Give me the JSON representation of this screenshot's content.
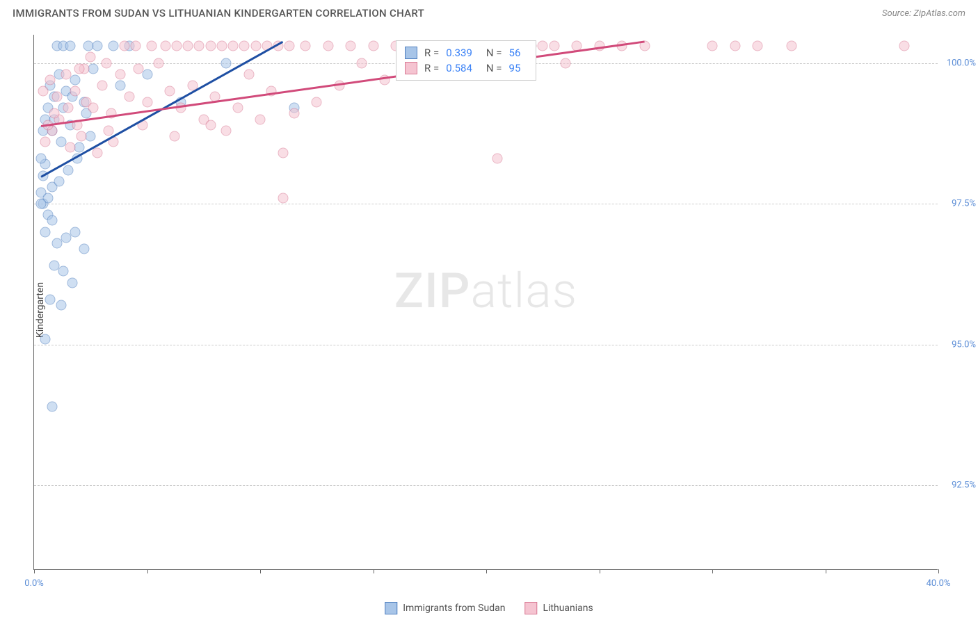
{
  "title": "IMMIGRANTS FROM SUDAN VS LITHUANIAN KINDERGARTEN CORRELATION CHART",
  "source": "Source: ZipAtlas.com",
  "yaxis_label": "Kindergarten",
  "watermark": {
    "part1": "ZIP",
    "part2": "atlas"
  },
  "chart": {
    "type": "scatter",
    "xlim": [
      0,
      40
    ],
    "ylim": [
      91,
      100.5
    ],
    "background_color": "#ffffff",
    "grid_color": "#cccccc",
    "axis_color": "#666666",
    "xticks": [
      0,
      5,
      10,
      15,
      20,
      25,
      30,
      35,
      40
    ],
    "xtick_labels": {
      "0": "0.0%",
      "40": "40.0%"
    },
    "yticks": [
      92.5,
      95.0,
      97.5,
      100.0
    ],
    "ytick_labels": [
      "92.5%",
      "95.0%",
      "97.5%",
      "100.0%"
    ],
    "point_radius": 7.5,
    "point_opacity": 0.55,
    "label_color": "#5b8dd6",
    "label_fontsize": 13
  },
  "series": [
    {
      "name": "Immigrants from Sudan",
      "fill_color": "#a8c5e8",
      "stroke_color": "#4f7fbf",
      "trend_color": "#1e4fa3",
      "R": "0.339",
      "N": "56",
      "trend": {
        "x1": 0.3,
        "y1": 98.0,
        "x2": 11.0,
        "y2": 100.4
      },
      "points": [
        [
          0.3,
          97.7
        ],
        [
          0.4,
          98.0
        ],
        [
          0.5,
          98.2
        ],
        [
          0.4,
          97.5
        ],
        [
          0.6,
          97.6
        ],
        [
          0.3,
          98.3
        ],
        [
          1.0,
          100.3
        ],
        [
          1.3,
          100.3
        ],
        [
          1.6,
          100.3
        ],
        [
          2.4,
          100.3
        ],
        [
          2.8,
          100.3
        ],
        [
          3.5,
          100.3
        ],
        [
          4.2,
          100.3
        ],
        [
          1.1,
          99.8
        ],
        [
          0.7,
          99.6
        ],
        [
          0.9,
          99.4
        ],
        [
          1.4,
          99.5
        ],
        [
          1.8,
          99.7
        ],
        [
          2.2,
          99.3
        ],
        [
          2.6,
          99.9
        ],
        [
          0.5,
          99.0
        ],
        [
          0.8,
          98.8
        ],
        [
          1.2,
          98.6
        ],
        [
          1.6,
          98.9
        ],
        [
          2.0,
          98.5
        ],
        [
          2.5,
          98.7
        ],
        [
          0.4,
          98.8
        ],
        [
          0.6,
          99.2
        ],
        [
          0.9,
          99.0
        ],
        [
          1.3,
          99.2
        ],
        [
          1.7,
          99.4
        ],
        [
          0.8,
          97.8
        ],
        [
          1.1,
          97.9
        ],
        [
          1.5,
          98.1
        ],
        [
          1.9,
          98.3
        ],
        [
          2.3,
          99.1
        ],
        [
          0.6,
          97.3
        ],
        [
          0.3,
          97.5
        ],
        [
          0.5,
          97.0
        ],
        [
          0.8,
          97.2
        ],
        [
          1.0,
          96.8
        ],
        [
          1.4,
          96.9
        ],
        [
          1.8,
          97.0
        ],
        [
          2.2,
          96.7
        ],
        [
          0.9,
          96.4
        ],
        [
          1.3,
          96.3
        ],
        [
          1.7,
          96.1
        ],
        [
          0.7,
          95.8
        ],
        [
          1.2,
          95.7
        ],
        [
          0.5,
          95.1
        ],
        [
          0.8,
          93.9
        ],
        [
          3.8,
          99.6
        ],
        [
          5.0,
          99.8
        ],
        [
          6.5,
          99.3
        ],
        [
          8.5,
          100.0
        ],
        [
          11.5,
          99.2
        ]
      ]
    },
    {
      "name": "Lithuanians",
      "fill_color": "#f5c4d1",
      "stroke_color": "#d97a95",
      "trend_color": "#d14a7a",
      "R": "0.584",
      "N": "95",
      "trend": {
        "x1": 0.3,
        "y1": 98.9,
        "x2": 27.0,
        "y2": 100.4
      },
      "points": [
        [
          0.5,
          98.6
        ],
        [
          0.8,
          98.8
        ],
        [
          1.1,
          99.0
        ],
        [
          1.5,
          99.2
        ],
        [
          1.9,
          98.9
        ],
        [
          2.3,
          99.3
        ],
        [
          0.4,
          99.5
        ],
        [
          0.7,
          99.7
        ],
        [
          1.0,
          99.4
        ],
        [
          1.4,
          99.8
        ],
        [
          1.8,
          99.5
        ],
        [
          2.2,
          99.9
        ],
        [
          2.6,
          99.2
        ],
        [
          3.0,
          99.6
        ],
        [
          3.4,
          99.1
        ],
        [
          3.8,
          99.8
        ],
        [
          4.2,
          99.4
        ],
        [
          4.6,
          99.9
        ],
        [
          5.0,
          99.3
        ],
        [
          5.5,
          100.0
        ],
        [
          6.0,
          99.5
        ],
        [
          6.5,
          99.2
        ],
        [
          7.0,
          99.6
        ],
        [
          7.5,
          99.0
        ],
        [
          8.0,
          99.4
        ],
        [
          8.5,
          98.8
        ],
        [
          9.0,
          99.2
        ],
        [
          9.5,
          99.8
        ],
        [
          10.0,
          99.0
        ],
        [
          10.5,
          99.5
        ],
        [
          11.0,
          98.4
        ],
        [
          11.5,
          99.1
        ],
        [
          12.0,
          100.3
        ],
        [
          12.5,
          99.3
        ],
        [
          13.0,
          100.3
        ],
        [
          13.5,
          99.6
        ],
        [
          14.0,
          100.3
        ],
        [
          14.5,
          100.0
        ],
        [
          15.0,
          100.3
        ],
        [
          15.5,
          99.7
        ],
        [
          16.0,
          100.3
        ],
        [
          16.5,
          100.0
        ],
        [
          17.0,
          100.3
        ],
        [
          17.5,
          99.8
        ],
        [
          18.0,
          100.3
        ],
        [
          18.5,
          100.0
        ],
        [
          19.0,
          100.3
        ],
        [
          19.5,
          100.3
        ],
        [
          20.0,
          100.0
        ],
        [
          20.5,
          100.3
        ],
        [
          21.0,
          100.3
        ],
        [
          21.5,
          100.0
        ],
        [
          22.0,
          100.3
        ],
        [
          22.5,
          100.3
        ],
        [
          23.0,
          100.3
        ],
        [
          23.5,
          100.0
        ],
        [
          24.0,
          100.3
        ],
        [
          25.0,
          100.3
        ],
        [
          26.0,
          100.3
        ],
        [
          27.0,
          100.3
        ],
        [
          30.0,
          100.3
        ],
        [
          31.0,
          100.3
        ],
        [
          32.0,
          100.3
        ],
        [
          33.5,
          100.3
        ],
        [
          38.5,
          100.3
        ],
        [
          2.0,
          99.9
        ],
        [
          2.5,
          100.1
        ],
        [
          3.2,
          100.0
        ],
        [
          4.0,
          100.3
        ],
        [
          4.5,
          100.3
        ],
        [
          5.2,
          100.3
        ],
        [
          5.8,
          100.3
        ],
        [
          6.3,
          100.3
        ],
        [
          6.8,
          100.3
        ],
        [
          7.3,
          100.3
        ],
        [
          7.8,
          100.3
        ],
        [
          8.3,
          100.3
        ],
        [
          8.8,
          100.3
        ],
        [
          9.3,
          100.3
        ],
        [
          9.8,
          100.3
        ],
        [
          10.3,
          100.3
        ],
        [
          10.8,
          100.3
        ],
        [
          11.3,
          100.3
        ],
        [
          3.5,
          98.6
        ],
        [
          4.8,
          98.9
        ],
        [
          6.2,
          98.7
        ],
        [
          7.8,
          98.9
        ],
        [
          11.0,
          97.6
        ],
        [
          20.5,
          98.3
        ],
        [
          1.6,
          98.5
        ],
        [
          2.1,
          98.7
        ],
        [
          2.8,
          98.4
        ],
        [
          3.3,
          98.8
        ],
        [
          0.6,
          98.9
        ],
        [
          0.9,
          99.1
        ]
      ]
    }
  ],
  "legend_stats": {
    "R_label": "R =",
    "N_label": "N ="
  },
  "bottom_legend": [
    {
      "label": "Immigrants from Sudan",
      "fill": "#a8c5e8",
      "stroke": "#4f7fbf"
    },
    {
      "label": "Lithuanians",
      "fill": "#f5c4d1",
      "stroke": "#d97a95"
    }
  ]
}
